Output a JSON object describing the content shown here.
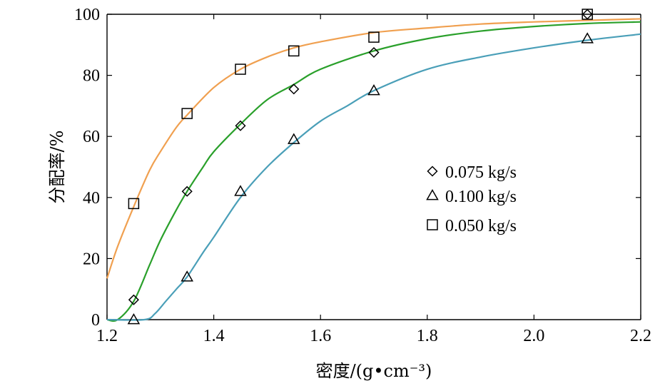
{
  "chart_data": {
    "type": "scatter",
    "xlabel": "密度/(g•cm⁻³)",
    "ylabel": "分配率/%",
    "xlim": [
      1.2,
      2.2
    ],
    "ylim": [
      0,
      100
    ],
    "xticks": [
      "1.2",
      "1.4",
      "1.6",
      "1.8",
      "2.0",
      "2.2"
    ],
    "yticks": [
      "0",
      "20",
      "40",
      "60",
      "80",
      "100"
    ],
    "grid": false,
    "legend_position": "right-center",
    "series": [
      {
        "name": "0.075 kg/s",
        "marker": "diamond",
        "x": [
          1.25,
          1.35,
          1.45,
          1.55,
          1.7,
          2.1
        ],
        "y": [
          6.5,
          42,
          63.5,
          75.5,
          87.5,
          100
        ],
        "curve_color": "#2aa02b",
        "fit_curve": {
          "x": [
            1.22,
            1.25,
            1.28,
            1.3,
            1.33,
            1.35,
            1.38,
            1.4,
            1.45,
            1.5,
            1.55,
            1.6,
            1.7,
            1.8,
            1.9,
            2.0,
            2.1,
            2.2
          ],
          "y": [
            0,
            6,
            18,
            26,
            36,
            42,
            50,
            55,
            64,
            72,
            77,
            82,
            88,
            92,
            94.5,
            96,
            97,
            97.5
          ]
        }
      },
      {
        "name": "0.100 kg/s",
        "marker": "triangle",
        "x": [
          1.25,
          1.35,
          1.45,
          1.55,
          1.7,
          2.1
        ],
        "y": [
          0,
          14,
          42,
          59,
          75,
          92
        ],
        "curve_color": "#4a9fb8",
        "fit_curve": {
          "x": [
            1.27,
            1.29,
            1.31,
            1.33,
            1.35,
            1.38,
            1.4,
            1.45,
            1.5,
            1.55,
            1.6,
            1.65,
            1.7,
            1.8,
            1.9,
            2.0,
            2.1,
            2.2
          ],
          "y": [
            0,
            2,
            6,
            10,
            14,
            22,
            27,
            40,
            50,
            58,
            65,
            70,
            75,
            82,
            86,
            89,
            91.5,
            93.5
          ]
        }
      },
      {
        "name": "0.050 kg/s",
        "marker": "square",
        "x": [
          1.25,
          1.35,
          1.45,
          1.55,
          1.7,
          2.1
        ],
        "y": [
          38,
          67.5,
          82,
          88,
          92.5,
          100
        ],
        "curve_color": "#f0a050",
        "fit_curve": {
          "x": [
            1.2,
            1.22,
            1.25,
            1.28,
            1.3,
            1.33,
            1.35,
            1.4,
            1.45,
            1.5,
            1.55,
            1.6,
            1.7,
            1.8,
            1.9,
            2.0,
            2.1,
            2.2
          ],
          "y": [
            13.5,
            24,
            37,
            49,
            55,
            63,
            67,
            76,
            82,
            86,
            89,
            91,
            94,
            95.5,
            96.8,
            97.5,
            98,
            98.5
          ]
        }
      }
    ]
  }
}
